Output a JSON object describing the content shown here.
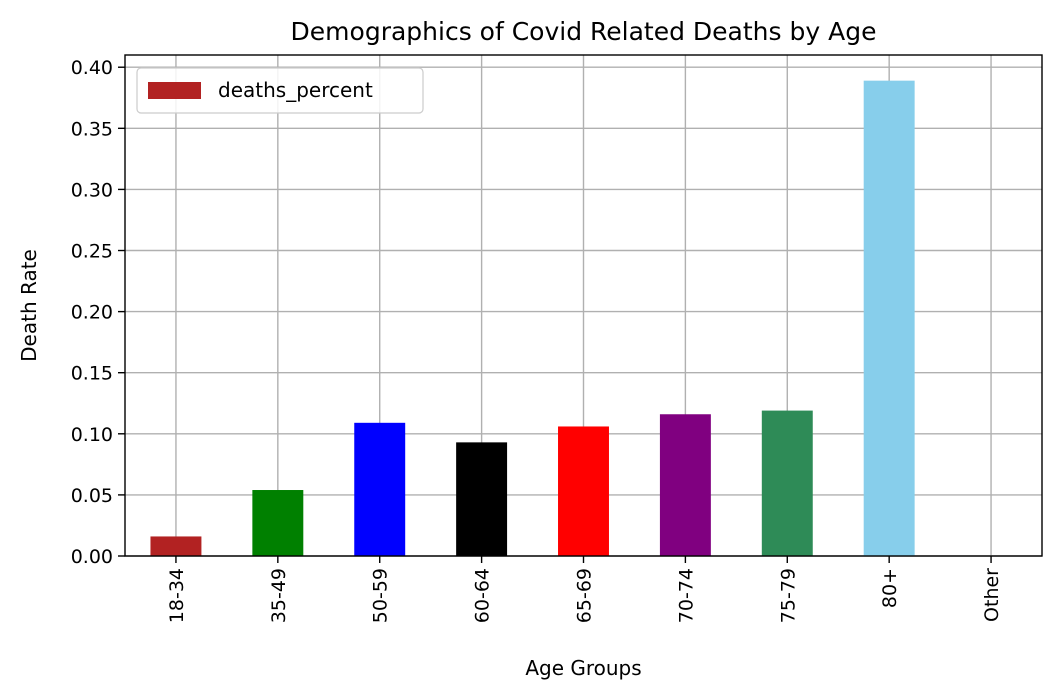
{
  "chart_data": {
    "type": "bar",
    "title": "Demographics of Covid Related Deaths by Age",
    "xlabel": "Age Groups",
    "ylabel": "Death Rate",
    "categories": [
      "18-34",
      "35-49",
      "50-59",
      "60-64",
      "65-69",
      "70-74",
      "75-79",
      "80+",
      "Other"
    ],
    "series": [
      {
        "name": "deaths_percent",
        "values": [
          0.016,
          0.054,
          0.109,
          0.093,
          0.106,
          0.116,
          0.119,
          0.389,
          0.0
        ],
        "colors": [
          "#b22222",
          "#008000",
          "#0000ff",
          "#000000",
          "#ff0000",
          "#800080",
          "#2e8b57",
          "#87ceeb",
          "#ffffff"
        ]
      }
    ],
    "ylim": [
      0,
      0.41
    ],
    "yticks": [
      0.0,
      0.05,
      0.1,
      0.15,
      0.2,
      0.25,
      0.3,
      0.35,
      0.4
    ],
    "ytick_labels": [
      "0.00",
      "0.05",
      "0.10",
      "0.15",
      "0.20",
      "0.25",
      "0.30",
      "0.35",
      "0.40"
    ],
    "grid": true,
    "legend": {
      "position": "top-left",
      "entries": [
        {
          "label": "deaths_percent",
          "color": "#b22222"
        }
      ]
    }
  }
}
